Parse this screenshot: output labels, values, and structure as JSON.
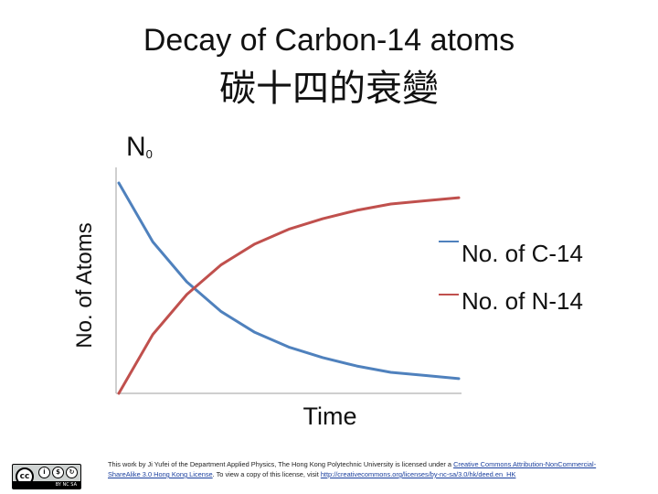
{
  "titles": {
    "en": "Decay of Carbon-14 atoms",
    "zh": "碳十四的衰變"
  },
  "chart_data": {
    "type": "line",
    "xlabel": "Time",
    "ylabel": "No. of Atoms",
    "ylabel_marker": {
      "base": "N",
      "subscript": "0"
    },
    "xlim": [
      0,
      10
    ],
    "ylim": [
      0,
      1
    ],
    "grid": false,
    "legend_position": "right",
    "series": [
      {
        "name": "No. of C-14",
        "color": "#4f81bd",
        "x": [
          0,
          1,
          2,
          3,
          4,
          5,
          6,
          7,
          8,
          9,
          10
        ],
        "y": [
          1.0,
          0.72,
          0.53,
          0.39,
          0.29,
          0.22,
          0.17,
          0.13,
          0.1,
          0.085,
          0.07
        ]
      },
      {
        "name": "No. of N-14",
        "color": "#c0504d",
        "x": [
          0,
          1,
          2,
          3,
          4,
          5,
          6,
          7,
          8,
          9,
          10
        ],
        "y": [
          0.0,
          0.28,
          0.47,
          0.61,
          0.71,
          0.78,
          0.83,
          0.87,
          0.9,
          0.915,
          0.93
        ]
      }
    ]
  },
  "license": {
    "badge_label": "BY NC SA",
    "text_before": "This work by Ji Yufei of the Department Applied Physics, The Hong Kong Polytechnic University is licensed under a ",
    "link1": "Creative Commons Attribution-NonCommercial-ShareAlike 3.0 Hong Kong License",
    "text_middle": ". To view a copy of this license, visit ",
    "link2": "http://creativecommons.org/licenses/by-nc-sa/3.0/hk/deed.en_HK"
  }
}
